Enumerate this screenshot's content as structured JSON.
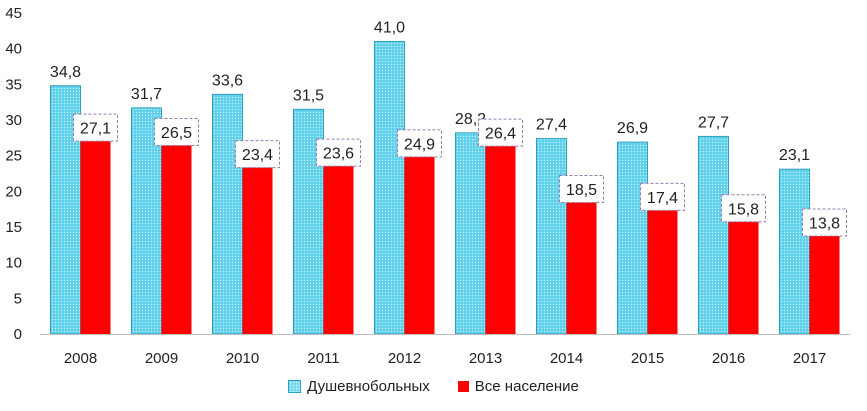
{
  "chart_data": {
    "type": "bar",
    "categories": [
      "2008",
      "2009",
      "2010",
      "2011",
      "2012",
      "2013",
      "2014",
      "2015",
      "2016",
      "2017"
    ],
    "series": [
      {
        "name": "Душевнобольных",
        "values": [
          34.8,
          31.7,
          33.6,
          31.5,
          41.0,
          28.2,
          27.4,
          26.9,
          27.7,
          23.1
        ],
        "labels": [
          "34,8",
          "31,7",
          "33,6",
          "31,5",
          "41,0",
          "28,2",
          "27,4",
          "26,9",
          "27,7",
          "23,1"
        ],
        "color": "#5fd0ea"
      },
      {
        "name": "Все население",
        "values": [
          27.1,
          26.5,
          23.4,
          23.6,
          24.9,
          26.4,
          18.5,
          17.4,
          15.8,
          13.8
        ],
        "labels": [
          "27,1",
          "26,5",
          "23,4",
          "23,6",
          "24,9",
          "26,4",
          "18,5",
          "17,4",
          "15,8",
          "13,8"
        ],
        "color": "#ff0000"
      }
    ],
    "yticks": [
      "0",
      "5",
      "10",
      "15",
      "20",
      "25",
      "30",
      "35",
      "40",
      "45"
    ],
    "ylim": [
      0,
      45
    ],
    "grid": false,
    "legend": "bottom",
    "title": "",
    "xlabel": "",
    "ylabel": ""
  }
}
